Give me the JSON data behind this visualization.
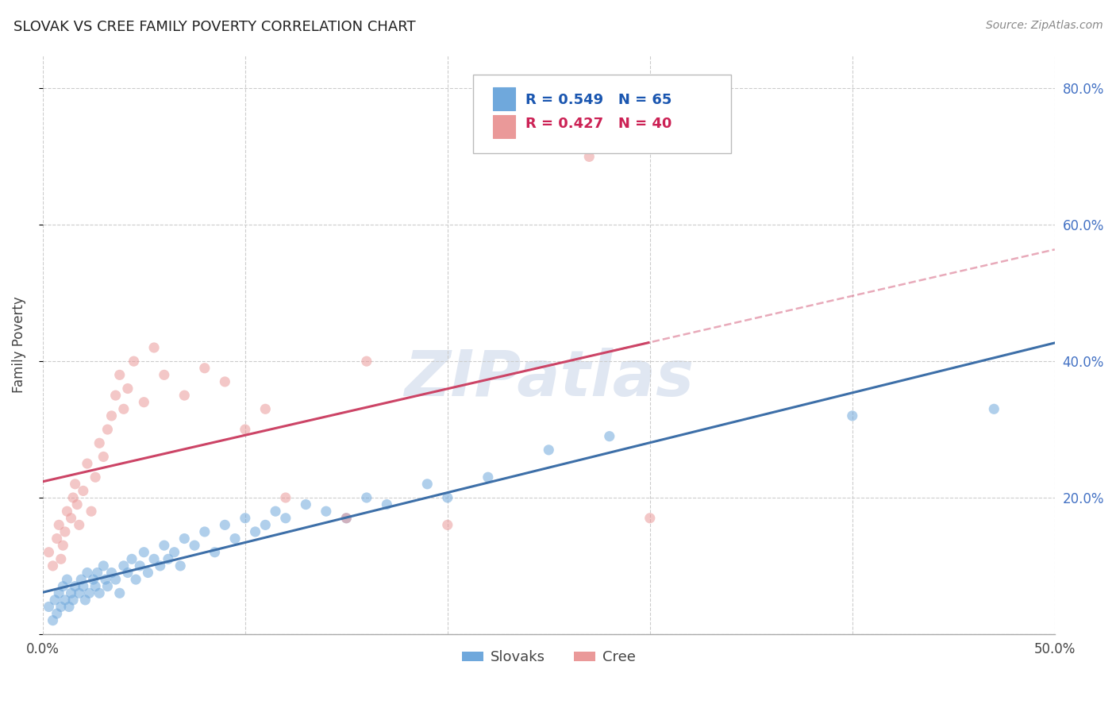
{
  "title": "SLOVAK VS CREE FAMILY POVERTY CORRELATION CHART",
  "source": "Source: ZipAtlas.com",
  "ylabel": "Family Poverty",
  "xlim": [
    0.0,
    0.5
  ],
  "ylim": [
    0.0,
    0.85
  ],
  "background_color": "#ffffff",
  "grid_color": "#cccccc",
  "slovaks_color": "#6fa8dc",
  "cree_color": "#ea9999",
  "slovaks_line_color": "#3d6fa8",
  "cree_line_color": "#cc4466",
  "slovaks_R": 0.549,
  "slovaks_N": 65,
  "cree_R": 0.427,
  "cree_N": 40,
  "legend_label_slovaks": "Slovaks",
  "legend_label_cree": "Cree",
  "slovaks_x": [
    0.003,
    0.005,
    0.006,
    0.007,
    0.008,
    0.009,
    0.01,
    0.011,
    0.012,
    0.013,
    0.014,
    0.015,
    0.016,
    0.018,
    0.019,
    0.02,
    0.021,
    0.022,
    0.023,
    0.025,
    0.026,
    0.027,
    0.028,
    0.03,
    0.031,
    0.032,
    0.034,
    0.036,
    0.038,
    0.04,
    0.042,
    0.044,
    0.046,
    0.048,
    0.05,
    0.052,
    0.055,
    0.058,
    0.06,
    0.062,
    0.065,
    0.068,
    0.07,
    0.075,
    0.08,
    0.085,
    0.09,
    0.095,
    0.1,
    0.105,
    0.11,
    0.115,
    0.12,
    0.13,
    0.14,
    0.15,
    0.16,
    0.17,
    0.19,
    0.2,
    0.22,
    0.25,
    0.28,
    0.4,
    0.47
  ],
  "slovaks_y": [
    0.04,
    0.02,
    0.05,
    0.03,
    0.06,
    0.04,
    0.07,
    0.05,
    0.08,
    0.04,
    0.06,
    0.05,
    0.07,
    0.06,
    0.08,
    0.07,
    0.05,
    0.09,
    0.06,
    0.08,
    0.07,
    0.09,
    0.06,
    0.1,
    0.08,
    0.07,
    0.09,
    0.08,
    0.06,
    0.1,
    0.09,
    0.11,
    0.08,
    0.1,
    0.12,
    0.09,
    0.11,
    0.1,
    0.13,
    0.11,
    0.12,
    0.1,
    0.14,
    0.13,
    0.15,
    0.12,
    0.16,
    0.14,
    0.17,
    0.15,
    0.16,
    0.18,
    0.17,
    0.19,
    0.18,
    0.17,
    0.2,
    0.19,
    0.22,
    0.2,
    0.23,
    0.27,
    0.29,
    0.32,
    0.33
  ],
  "cree_x": [
    0.003,
    0.005,
    0.007,
    0.008,
    0.009,
    0.01,
    0.011,
    0.012,
    0.014,
    0.015,
    0.016,
    0.017,
    0.018,
    0.02,
    0.022,
    0.024,
    0.026,
    0.028,
    0.03,
    0.032,
    0.034,
    0.036,
    0.038,
    0.04,
    0.042,
    0.045,
    0.05,
    0.055,
    0.06,
    0.07,
    0.08,
    0.09,
    0.1,
    0.11,
    0.12,
    0.15,
    0.16,
    0.2,
    0.27,
    0.3
  ],
  "cree_y": [
    0.12,
    0.1,
    0.14,
    0.16,
    0.11,
    0.13,
    0.15,
    0.18,
    0.17,
    0.2,
    0.22,
    0.19,
    0.16,
    0.21,
    0.25,
    0.18,
    0.23,
    0.28,
    0.26,
    0.3,
    0.32,
    0.35,
    0.38,
    0.33,
    0.36,
    0.4,
    0.34,
    0.42,
    0.38,
    0.35,
    0.39,
    0.37,
    0.3,
    0.33,
    0.2,
    0.17,
    0.4,
    0.16,
    0.7,
    0.17
  ]
}
